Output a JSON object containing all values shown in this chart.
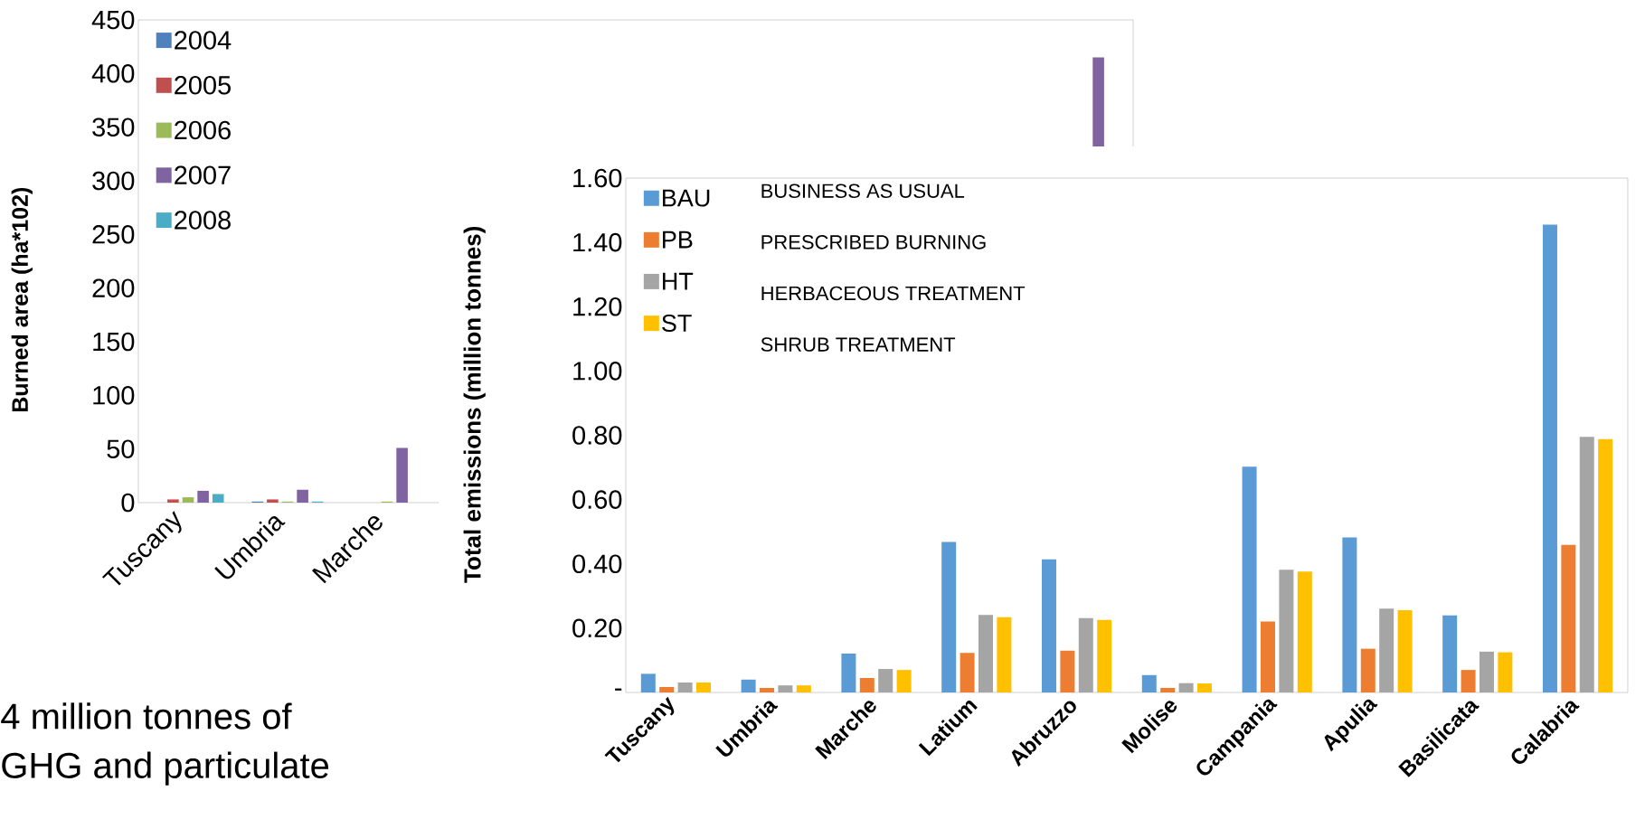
{
  "chart_data": [
    {
      "type": "bar",
      "categories": [
        "Tuscany",
        "Umbria",
        "Marche",
        null,
        null,
        null,
        null,
        null,
        null,
        null
      ],
      "series": [
        {
          "name": "2004",
          "color": "#4f81bd",
          "values": [
            0,
            1,
            0,
            null,
            null,
            null,
            null,
            null,
            null,
            null
          ]
        },
        {
          "name": "2005",
          "color": "#c0504d",
          "values": [
            3,
            3,
            0,
            null,
            null,
            null,
            null,
            null,
            null,
            null
          ]
        },
        {
          "name": "2006",
          "color": "#9bbb59",
          "values": [
            5,
            1,
            1,
            null,
            null,
            null,
            null,
            null,
            null,
            null
          ]
        },
        {
          "name": "2007",
          "color": "#8064a2",
          "values": [
            11,
            12,
            51,
            null,
            null,
            null,
            null,
            null,
            null,
            415
          ]
        },
        {
          "name": "2008",
          "color": "#4bacc6",
          "values": [
            8,
            1,
            0,
            null,
            null,
            null,
            null,
            null,
            null,
            null
          ]
        }
      ],
      "ylabel": "Burned area (ha*102)",
      "ylim": [
        0,
        450
      ],
      "yticks": [
        0,
        50,
        100,
        150,
        200,
        250,
        300,
        350,
        400,
        450
      ],
      "legend": "top left",
      "annotations": [
        "4 million tonnes of",
        "GHG and particulate"
      ]
    },
    {
      "type": "bar",
      "categories": [
        "Tuscany",
        "Umbria",
        "Marche",
        "Latium",
        "Abruzzo",
        "Molise",
        "Campania",
        "Apulia",
        "Basilicata",
        "Calabria"
      ],
      "series": [
        {
          "name": "BAU",
          "color": "#5b9bd5",
          "values": [
            0.058,
            0.04,
            0.121,
            0.468,
            0.414,
            0.054,
            0.702,
            0.482,
            0.24,
            1.455
          ]
        },
        {
          "name": "PB",
          "color": "#ed7d31",
          "values": [
            0.017,
            0.014,
            0.045,
            0.123,
            0.13,
            0.014,
            0.221,
            0.136,
            0.07,
            0.459
          ]
        },
        {
          "name": "HT",
          "color": "#a5a5a5",
          "values": [
            0.031,
            0.022,
            0.073,
            0.241,
            0.231,
            0.029,
            0.382,
            0.261,
            0.127,
            0.795
          ]
        },
        {
          "name": "ST",
          "color": "#ffc000",
          "values": [
            0.031,
            0.022,
            0.07,
            0.234,
            0.226,
            0.028,
            0.376,
            0.256,
            0.125,
            0.788
          ]
        }
      ],
      "ylabel": "Total emissions (million tonnes)",
      "ylim": [
        0,
        1.6
      ],
      "yticks": [
        {
          "value": 0,
          "label": "-"
        },
        {
          "value": 0.2,
          "label": "0.20"
        },
        {
          "value": 0.4,
          "label": "0.40"
        },
        {
          "value": 0.6,
          "label": "0.60"
        },
        {
          "value": 0.8,
          "label": "0.80"
        },
        {
          "value": 1.0,
          "label": "1.00"
        },
        {
          "value": 1.2,
          "label": "1.20"
        },
        {
          "value": 1.4,
          "label": "1.40"
        },
        {
          "value": 1.6,
          "label": "1.60"
        }
      ],
      "legend": "top left",
      "annotations": [
        "BUSINESS AS USUAL",
        "PRESCRIBED BURNING",
        "HERBACEOUS TREATMENT",
        "SHRUB TREATMENT"
      ]
    }
  ]
}
